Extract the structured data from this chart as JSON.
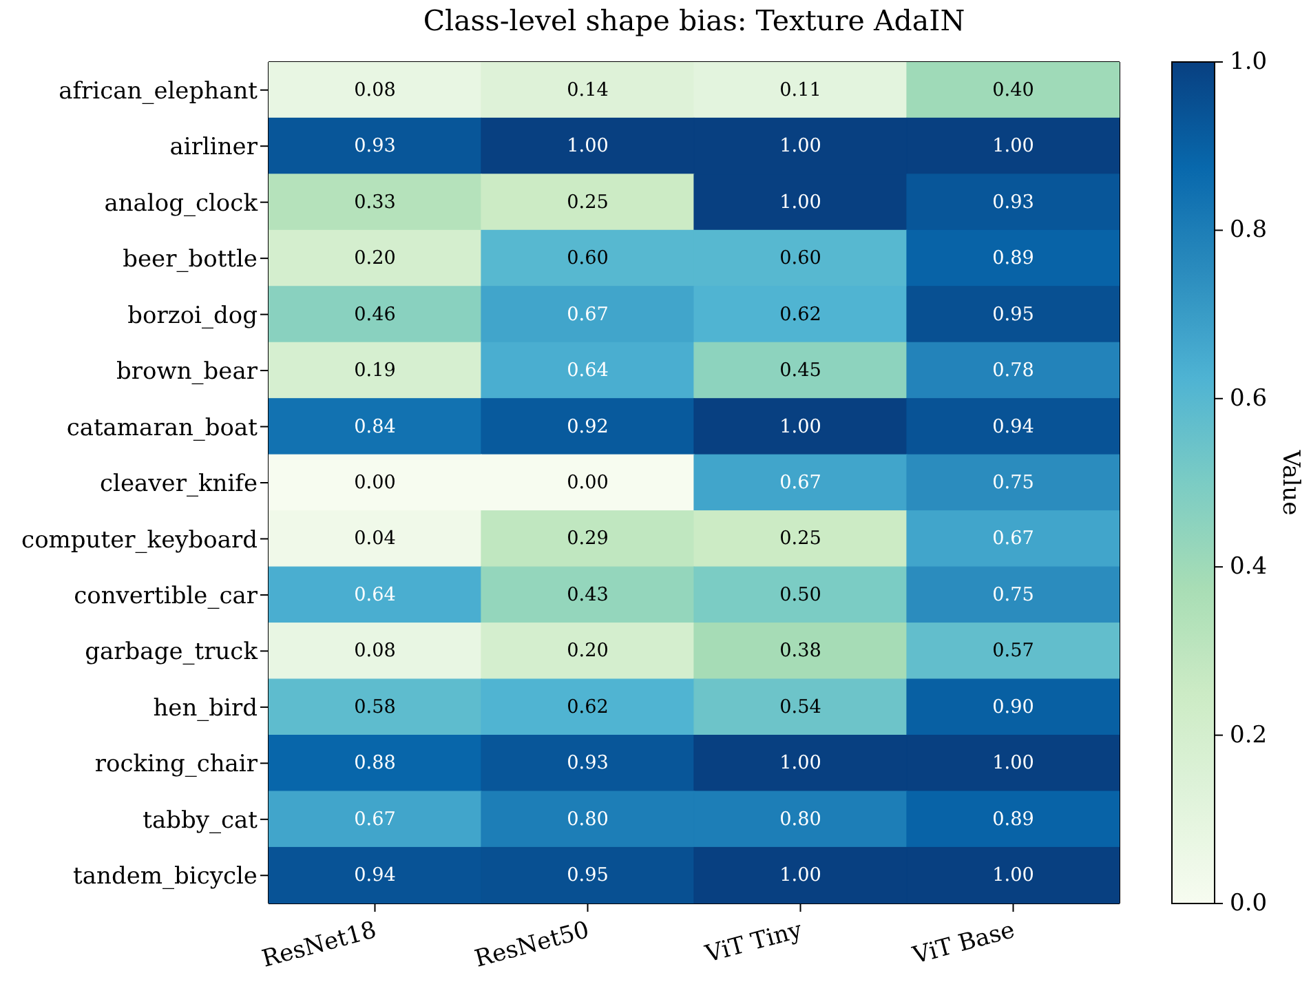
{
  "chart_data": {
    "type": "heatmap",
    "title": "Class-level shape bias: Texture AdaIN",
    "categories": [
      "ResNet18",
      "ResNet50",
      "ViT Tiny",
      "ViT Base"
    ],
    "y_categories": [
      "african_elephant",
      "airliner",
      "analog_clock",
      "beer_bottle",
      "borzoi_dog",
      "brown_bear",
      "catamaran_boat",
      "cleaver_knife",
      "computer_keyboard",
      "convertible_car",
      "garbage_truck",
      "hen_bird",
      "rocking_chair",
      "tabby_cat",
      "tandem_bicycle"
    ],
    "cells": [
      [
        0.08,
        0.14,
        0.11,
        0.4
      ],
      [
        0.93,
        1.0,
        1.0,
        1.0
      ],
      [
        0.33,
        0.25,
        1.0,
        0.93
      ],
      [
        0.2,
        0.6,
        0.6,
        0.89
      ],
      [
        0.46,
        0.67,
        0.62,
        0.95
      ],
      [
        0.19,
        0.64,
        0.45,
        0.78
      ],
      [
        0.84,
        0.92,
        1.0,
        0.94
      ],
      [
        0.0,
        0.0,
        0.67,
        0.75
      ],
      [
        0.04,
        0.29,
        0.25,
        0.67
      ],
      [
        0.64,
        0.43,
        0.5,
        0.75
      ],
      [
        0.08,
        0.2,
        0.38,
        0.57
      ],
      [
        0.58,
        0.62,
        0.54,
        0.9
      ],
      [
        0.88,
        0.93,
        1.0,
        1.0
      ],
      [
        0.67,
        0.8,
        0.8,
        0.89
      ],
      [
        0.94,
        0.95,
        1.0,
        1.0
      ]
    ],
    "cell_labels": [
      [
        "0.08",
        "0.14",
        "0.11",
        "0.40"
      ],
      [
        "0.93",
        "1.00",
        "1.00",
        "1.00"
      ],
      [
        "0.33",
        "0.25",
        "1.00",
        "0.93"
      ],
      [
        "0.20",
        "0.60",
        "0.60",
        "0.89"
      ],
      [
        "0.46",
        "0.67",
        "0.62",
        "0.95"
      ],
      [
        "0.19",
        "0.64",
        "0.45",
        "0.78"
      ],
      [
        "0.84",
        "0.92",
        "1.00",
        "0.94"
      ],
      [
        "0.00",
        "0.00",
        "0.67",
        "0.75"
      ],
      [
        "0.04",
        "0.29",
        "0.25",
        "0.67"
      ],
      [
        "0.64",
        "0.43",
        "0.50",
        "0.75"
      ],
      [
        "0.08",
        "0.20",
        "0.38",
        "0.57"
      ],
      [
        "0.58",
        "0.62",
        "0.54",
        "0.90"
      ],
      [
        "0.88",
        "0.93",
        "1.00",
        "1.00"
      ],
      [
        "0.67",
        "0.80",
        "0.80",
        "0.89"
      ],
      [
        "0.94",
        "0.95",
        "1.00",
        "1.00"
      ]
    ],
    "clim": [
      0,
      1
    ],
    "cticks": [
      {
        "value": 0,
        "label": "0.0"
      },
      {
        "value": 0.2,
        "label": "0.2"
      },
      {
        "value": 0.4,
        "label": "0.4"
      },
      {
        "value": 0.6,
        "label": "0.6"
      },
      {
        "value": 0.8,
        "label": "0.8"
      },
      {
        "value": 1,
        "label": "1.0"
      }
    ],
    "clabel": "Value"
  }
}
